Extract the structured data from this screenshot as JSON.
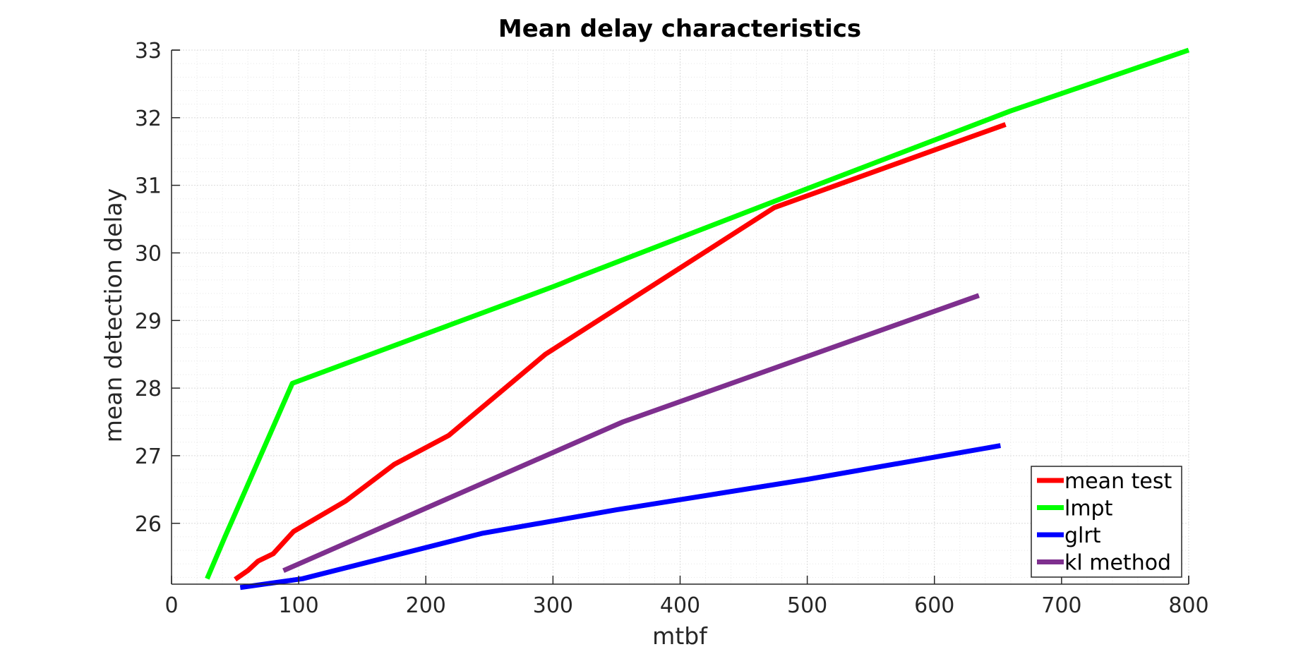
{
  "chart_data": {
    "type": "line",
    "title": "Mean delay characteristics",
    "xlabel": "mtbf",
    "ylabel": "mean detection delay",
    "xlim": [
      0,
      800
    ],
    "ylim": [
      25.1,
      33
    ],
    "x_ticks": [
      0,
      100,
      200,
      300,
      400,
      500,
      600,
      700,
      800
    ],
    "x_tick_labels": [
      "0",
      "100",
      "200",
      "300",
      "400",
      "500",
      "600",
      "700",
      "800"
    ],
    "y_ticks": [
      26,
      27,
      28,
      29,
      30,
      31,
      32,
      33
    ],
    "y_tick_labels": [
      "26",
      "27",
      "28",
      "29",
      "30",
      "31",
      "32",
      "33"
    ],
    "grid": true,
    "minor_grid": true,
    "legend_position": "bottom-right",
    "series": [
      {
        "name": "mean test",
        "color": "#ff0000",
        "points": [
          [
            50,
            25.17
          ],
          [
            60,
            25.3
          ],
          [
            68,
            25.44
          ],
          [
            80,
            25.55
          ],
          [
            96,
            25.88
          ],
          [
            137,
            26.33
          ],
          [
            175,
            26.87
          ],
          [
            218,
            27.3
          ],
          [
            294,
            28.5
          ],
          [
            474,
            30.67
          ],
          [
            656,
            31.9
          ]
        ]
      },
      {
        "name": "lmpt",
        "color": "#00ff00",
        "points": [
          [
            28,
            25.18
          ],
          [
            42,
            25.8
          ],
          [
            95,
            28.07
          ],
          [
            300,
            29.5
          ],
          [
            500,
            30.95
          ],
          [
            660,
            32.1
          ],
          [
            800,
            33.0
          ]
        ]
      },
      {
        "name": "glrt",
        "color": "#0000ff",
        "points": [
          [
            54,
            25.05
          ],
          [
            103,
            25.18
          ],
          [
            244,
            25.85
          ],
          [
            350,
            26.2
          ],
          [
            500,
            26.65
          ],
          [
            652,
            27.15
          ]
        ]
      },
      {
        "name": "kl method",
        "color": "#7e2f8e",
        "points": [
          [
            88,
            25.3
          ],
          [
            355,
            27.5
          ],
          [
            635,
            29.37
          ]
        ]
      }
    ]
  }
}
